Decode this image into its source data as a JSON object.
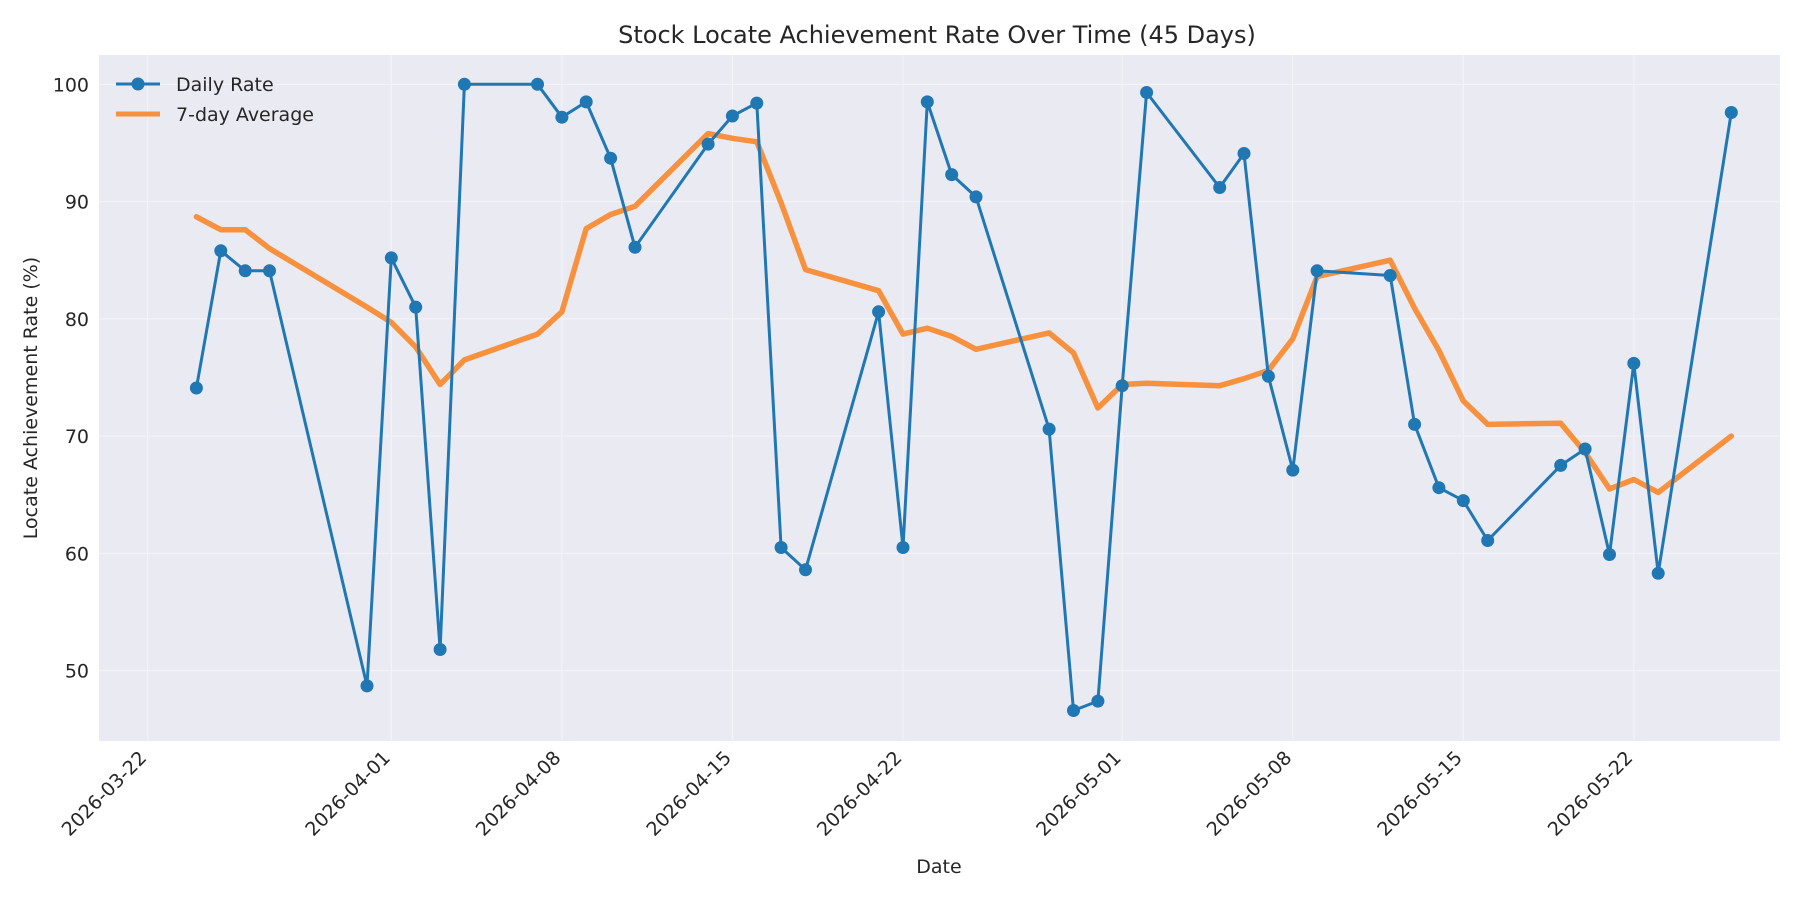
{
  "chart_data": {
    "type": "line",
    "title": "Stock Locate Achievement Rate Over Time (45 Days)",
    "xlabel": "Date",
    "ylabel": "Locate Achievement Rate (%)",
    "xlim": [
      "2026-03-20",
      "2026-05-28"
    ],
    "ylim": [
      44,
      102.5
    ],
    "x_ticks": [
      "2026-03-22",
      "2026-04-01",
      "2026-04-08",
      "2026-04-15",
      "2026-04-22",
      "2026-05-01",
      "2026-05-08",
      "2026-05-15",
      "2026-05-22"
    ],
    "y_ticks": [
      50,
      60,
      70,
      80,
      90,
      100
    ],
    "grid": true,
    "legend_position": "top-left",
    "background_color": "#eaeaf2",
    "x": [
      "2026-03-24",
      "2026-03-25",
      "2026-03-26",
      "2026-03-27",
      "2026-03-31",
      "2026-04-01",
      "2026-04-02",
      "2026-04-03",
      "2026-04-04",
      "2026-04-07",
      "2026-04-08",
      "2026-04-09",
      "2026-04-10",
      "2026-04-11",
      "2026-04-14",
      "2026-04-15",
      "2026-04-16",
      "2026-04-17",
      "2026-04-18",
      "2026-04-21",
      "2026-04-22",
      "2026-04-23",
      "2026-04-24",
      "2026-04-25",
      "2026-04-28",
      "2026-04-29",
      "2026-04-30",
      "2026-05-01",
      "2026-05-02",
      "2026-05-05",
      "2026-05-06",
      "2026-05-07",
      "2026-05-08",
      "2026-05-09",
      "2026-05-12",
      "2026-05-13",
      "2026-05-14",
      "2026-05-15",
      "2026-05-16",
      "2026-05-19",
      "2026-05-20",
      "2026-05-21",
      "2026-05-22",
      "2026-05-23",
      "2026-05-26"
    ],
    "series": [
      {
        "name": "Daily Rate",
        "color": "#1f77b4",
        "marker": "circle",
        "values": [
          74.1,
          85.8,
          84.1,
          84.1,
          48.7,
          85.2,
          81.0,
          51.8,
          100.0,
          100.0,
          97.2,
          98.5,
          93.7,
          86.1,
          94.9,
          97.3,
          98.4,
          60.5,
          58.6,
          80.6,
          60.5,
          98.5,
          92.3,
          90.4,
          70.6,
          46.6,
          47.4,
          74.3,
          99.3,
          91.2,
          94.1,
          75.1,
          67.1,
          84.1,
          83.7,
          71.0,
          65.6,
          64.5,
          61.1,
          67.5,
          68.9,
          59.9,
          76.2,
          58.3,
          97.6
        ]
      },
      {
        "name": "7-day Average",
        "color": "#f7913d",
        "marker": "none",
        "values": [
          88.7,
          87.6,
          87.6,
          86.0,
          81.0,
          79.7,
          77.6,
          74.4,
          76.5,
          78.7,
          80.6,
          87.7,
          88.9,
          89.6,
          95.8,
          95.4,
          95.1,
          89.9,
          84.2,
          82.4,
          78.7,
          79.2,
          78.5,
          77.4,
          78.8,
          77.1,
          72.4,
          74.4,
          74.5,
          74.3,
          74.9,
          75.6,
          78.3,
          83.6,
          85.0,
          80.9,
          77.3,
          73.0,
          71.0,
          71.1,
          68.6,
          65.5,
          66.3,
          65.2,
          70.0
        ]
      }
    ]
  }
}
